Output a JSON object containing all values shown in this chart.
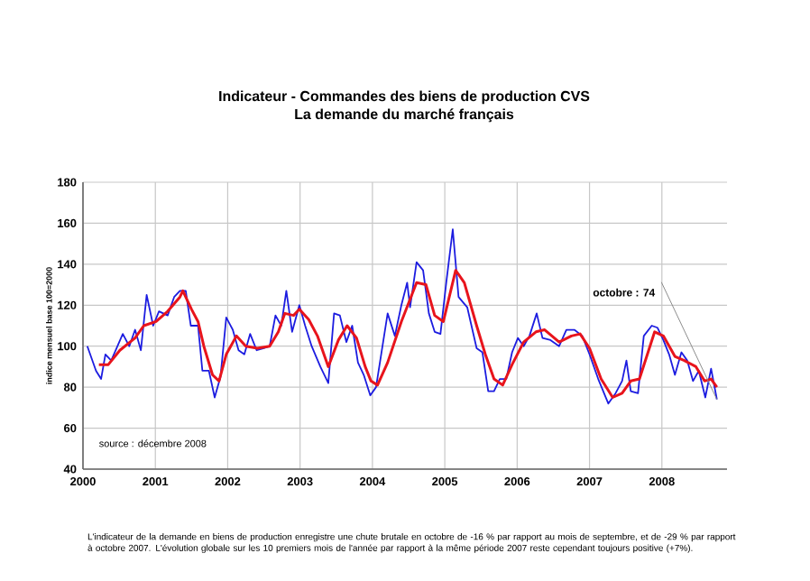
{
  "chart_data": {
    "type": "line",
    "title": "Indicateur - Commandes des biens de production CVS",
    "subtitle": "La demande du marché français",
    "ylabel": "indice mensuel base 100=2000",
    "xlim": [
      2000,
      2008.9
    ],
    "xticks": [
      2000,
      2001,
      2002,
      2003,
      2004,
      2005,
      2006,
      2007,
      2008
    ],
    "ylim": [
      40,
      180
    ],
    "yticks": [
      40,
      60,
      80,
      100,
      120,
      140,
      160,
      180
    ],
    "grid": true,
    "marker": "none",
    "line_style": "solid",
    "series": [
      {
        "color": "#1c1ce0",
        "x": [
          2000.06,
          2000.18,
          2000.25,
          2000.31,
          2000.39,
          2000.55,
          2000.64,
          2000.72,
          2000.8,
          2000.88,
          2000.97,
          2001.05,
          2001.17,
          2001.26,
          2001.34,
          2001.42,
          2001.49,
          2001.59,
          2001.65,
          2001.74,
          2001.82,
          2001.9,
          2001.98,
          2002.07,
          2002.15,
          2002.23,
          2002.31,
          2002.4,
          2002.5,
          2002.58,
          2002.66,
          2002.74,
          2002.81,
          2002.89,
          2002.99,
          2003.07,
          2003.16,
          2003.28,
          2003.39,
          2003.47,
          2003.55,
          2003.64,
          2003.72,
          2003.8,
          2003.88,
          2003.97,
          2004.05,
          2004.21,
          2004.31,
          2004.4,
          2004.48,
          2004.52,
          2004.61,
          2004.7,
          2004.78,
          2004.86,
          2004.94,
          2005.02,
          2005.11,
          2005.19,
          2005.31,
          2005.44,
          2005.52,
          2005.6,
          2005.68,
          2005.76,
          2005.85,
          2005.93,
          2006.01,
          2006.09,
          2006.17,
          2006.27,
          2006.35,
          2006.46,
          2006.58,
          2006.68,
          2006.79,
          2006.9,
          2007.0,
          2007.12,
          2007.26,
          2007.36,
          2007.45,
          2007.51,
          2007.57,
          2007.67,
          2007.75,
          2007.86,
          2007.94,
          2008.02,
          2008.1,
          2008.18,
          2008.27,
          2008.35,
          2008.43,
          2008.51,
          2008.6,
          2008.68,
          2008.76
        ],
        "values": [
          100,
          88,
          84,
          96,
          93,
          106,
          100,
          108,
          98,
          125,
          110,
          117,
          115,
          124,
          127,
          127,
          110,
          110,
          88,
          88,
          75,
          85,
          114,
          108,
          98,
          96,
          106,
          98,
          99,
          100,
          115,
          110,
          127,
          107,
          120,
          110,
          100,
          90,
          82,
          116,
          115,
          102,
          110,
          92,
          86,
          76,
          80,
          116,
          105,
          120,
          131,
          119,
          141,
          137,
          116,
          107,
          106,
          131,
          157,
          124,
          119,
          99,
          97,
          78,
          78,
          84,
          84,
          97,
          104,
          100,
          105,
          116,
          104,
          103,
          100,
          108,
          108,
          105,
          96,
          84,
          72,
          77,
          83,
          93,
          78,
          77,
          105,
          110,
          109,
          103,
          96,
          86,
          97,
          93,
          83,
          88,
          75,
          89,
          74
        ]
      },
      {
        "color": "#e8141c",
        "x": [
          2000.22,
          2000.35,
          2000.51,
          2000.72,
          2000.84,
          2001.01,
          2001.17,
          2001.34,
          2001.38,
          2001.5,
          2001.59,
          2001.67,
          2001.79,
          2001.88,
          2001.98,
          2002.12,
          2002.25,
          2002.41,
          2002.58,
          2002.7,
          2002.79,
          2002.91,
          2002.99,
          2003.12,
          2003.24,
          2003.39,
          2003.53,
          2003.65,
          2003.78,
          2003.9,
          2003.98,
          2004.07,
          2004.21,
          2004.4,
          2004.61,
          2004.74,
          2004.86,
          2004.98,
          2005.15,
          2005.27,
          2005.44,
          2005.56,
          2005.68,
          2005.8,
          2005.93,
          2006.09,
          2006.26,
          2006.38,
          2006.58,
          2006.75,
          2006.87,
          2007.0,
          2007.16,
          2007.32,
          2007.45,
          2007.57,
          2007.69,
          2007.9,
          2008.02,
          2008.18,
          2008.31,
          2008.47,
          2008.59,
          2008.68,
          2008.76
        ],
        "values": [
          91,
          91,
          98,
          104,
          110,
          112,
          117,
          124,
          127,
          118,
          112,
          100,
          86,
          83,
          96,
          105,
          100,
          99,
          100,
          107,
          116,
          115,
          118,
          113,
          105,
          90,
          103,
          110,
          104,
          90,
          83,
          81,
          92,
          112,
          131,
          130,
          115,
          112,
          137,
          131,
          110,
          96,
          84,
          81,
          91,
          102,
          107,
          108,
          102,
          105,
          106,
          99,
          84,
          75,
          77,
          83,
          84,
          107,
          105,
          95,
          93,
          90,
          83,
          84,
          80
        ]
      }
    ],
    "annotations": [
      "source : décembre 2008",
      "L'indicateur de la demande en biens de production enregistre une chute brutale en octobre de -16 % par rapport au mois de septembre, et de -29 % par rapport à octobre 2007. L'évolution globale sur les 10 premiers mois de l'année par rapport à la même période 2007 reste cependant toujours positive (+7%).",
      {
        "text": "octobre : 74",
        "x": 2008.76,
        "y": 74
      }
    ]
  }
}
